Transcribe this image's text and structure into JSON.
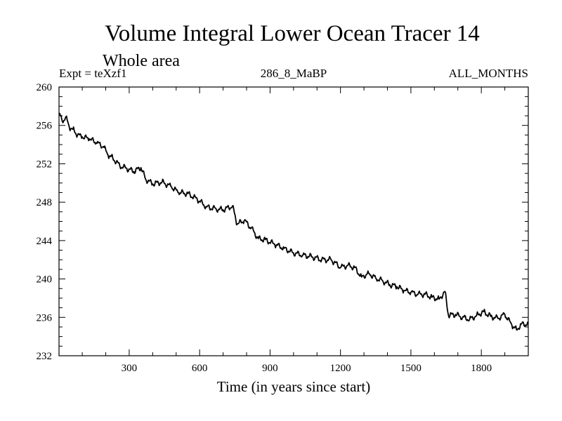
{
  "chart_data": {
    "type": "line",
    "title": "Volume Integral Lower Ocean Tracer 14",
    "subtitle": "Whole area",
    "experiment_label": "Expt = teXzf1",
    "center_label": "286_8_MaBP",
    "right_label": "ALL_MONTHS",
    "xlabel": "Time (in years since start)",
    "ylabel": "",
    "xlim": [
      1,
      2000
    ],
    "ylim": [
      232,
      260
    ],
    "x_ticks": [
      300,
      600,
      900,
      1200,
      1500,
      1800
    ],
    "x_tick_labels": [
      "300",
      "600",
      "900",
      "1200",
      "1500",
      "1800"
    ],
    "y_ticks": [
      232,
      236,
      240,
      244,
      248,
      252,
      256,
      260
    ],
    "y_tick_labels": [
      "232",
      "236",
      "240",
      "244",
      "248",
      "252",
      "256",
      "260"
    ],
    "grid": false,
    "series": [
      {
        "name": "Lower Ocean Tracer 14",
        "x": [
          1,
          15,
          30,
          45,
          60,
          80,
          100,
          130,
          160,
          190,
          210,
          230,
          260,
          290,
          320,
          350,
          370,
          400,
          440,
          480,
          510,
          550,
          590,
          630,
          670,
          700,
          740,
          760,
          790,
          820,
          850,
          880,
          920,
          960,
          1000,
          1040,
          1080,
          1120,
          1160,
          1200,
          1230,
          1260,
          1290,
          1320,
          1350,
          1380,
          1410,
          1440,
          1470,
          1500,
          1530,
          1560,
          1590,
          1620,
          1645,
          1660,
          1690,
          1720,
          1750,
          1780,
          1810,
          1840,
          1870,
          1900,
          1930,
          1950,
          1970,
          2000
        ],
        "y": [
          257.3,
          256.4,
          256.9,
          255.8,
          255.6,
          255.0,
          254.8,
          254.6,
          254.2,
          253.8,
          252.9,
          252.6,
          251.8,
          251.5,
          251.2,
          251.6,
          250.4,
          249.9,
          250.1,
          249.6,
          249.0,
          248.9,
          248.3,
          247.5,
          247.3,
          247.2,
          247.6,
          245.7,
          246.1,
          245.3,
          244.2,
          244.1,
          243.6,
          243.2,
          242.7,
          242.5,
          242.3,
          242.0,
          242.0,
          241.2,
          241.4,
          241.2,
          240.2,
          240.6,
          240.1,
          239.8,
          239.4,
          239.2,
          238.8,
          238.6,
          238.4,
          238.4,
          238.1,
          237.9,
          238.7,
          236.2,
          236.3,
          236.0,
          235.8,
          236.2,
          236.6,
          236.1,
          235.9,
          236.3,
          235.2,
          234.7,
          235.3,
          235.3
        ]
      }
    ]
  }
}
